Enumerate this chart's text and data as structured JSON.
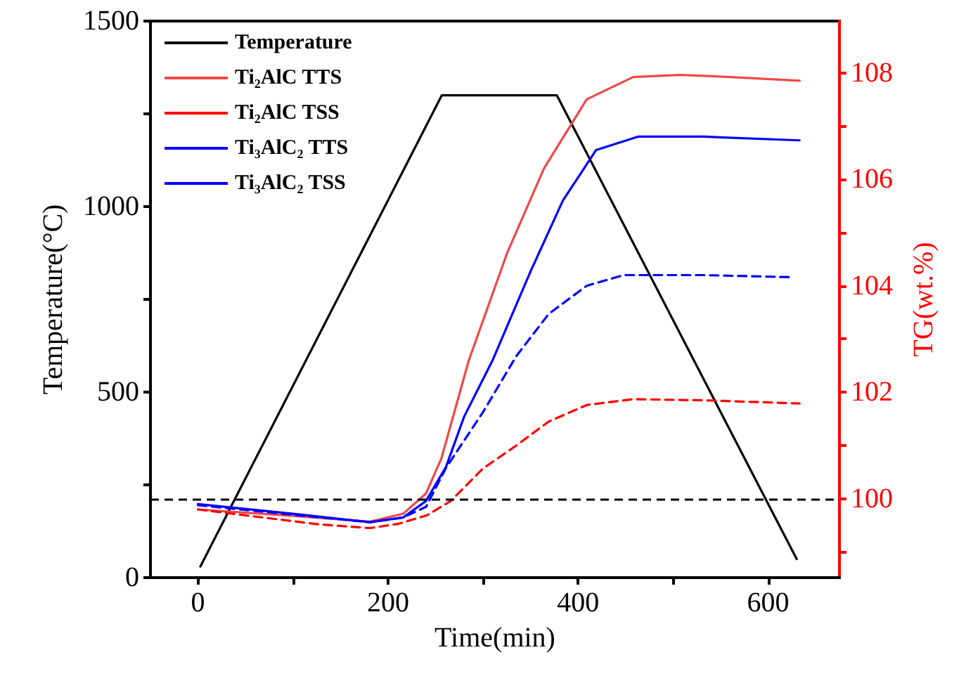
{
  "chart_data": {
    "type": "line",
    "xlabel": "Time(min)",
    "ylabel": "Temperature(°C)",
    "y2label": "TG(wt.%)",
    "xlim": [
      -50,
      675
    ],
    "xticks": [
      0,
      {
        "value": 100,
        "label": null
      },
      200,
      {
        "value": 300,
        "label": null
      },
      400,
      {
        "value": 500,
        "label": null
      },
      600
    ],
    "ylim": [
      0,
      1500
    ],
    "yticks": [
      0,
      {
        "value": 250,
        "label": null
      },
      500,
      {
        "value": 750,
        "label": null
      },
      1000,
      {
        "value": 1250,
        "label": null
      },
      1500
    ],
    "y2lim": [
      98.52,
      108.97
    ],
    "y2ticks": [
      {
        "value": 99,
        "label": null
      },
      100,
      {
        "value": 101,
        "label": null
      },
      102,
      {
        "value": 103,
        "label": null
      },
      104,
      {
        "value": 105,
        "label": null
      },
      106,
      {
        "value": 107,
        "label": null
      },
      108
    ],
    "grid": false,
    "legend": "top left",
    "marker": "none",
    "ref_lines": [
      {
        "axis": "y2",
        "value": 100,
        "label": null,
        "color": "#000000",
        "line_style": "dashed"
      }
    ],
    "series": [
      {
        "name": "Temperature",
        "color": "#000000",
        "line_style": "solid",
        "x": [
          2.5,
          256.6,
          377.6,
          630
        ],
        "values": [
          30,
          1300,
          1300,
          50
        ]
      },
      {
        "name": "Ti₂AlC TTS",
        "color": "#f04848",
        "line_style": "solid",
        "axis": "y2",
        "x": [
          0,
          100,
          181,
          216,
          240,
          251,
          256,
          285,
          325,
          364,
          409,
          458,
          507,
          560,
          633
        ],
        "values": [
          99.8,
          99.68,
          99.57,
          99.72,
          100.1,
          100.55,
          100.75,
          102.6,
          104.6,
          106.2,
          107.5,
          107.92,
          107.96,
          107.92,
          107.85
        ]
      },
      {
        "name": "Ti₂AlC TSS",
        "color": "#ff0000",
        "line_style": "dashed",
        "axis": "y2",
        "x": [
          0,
          127,
          181,
          211,
          241,
          266,
          300,
          335,
          369,
          409,
          458,
          532,
          633
        ],
        "values": [
          99.8,
          99.52,
          99.45,
          99.53,
          99.69,
          99.96,
          100.57,
          101.0,
          101.45,
          101.76,
          101.87,
          101.85,
          101.79
        ]
      },
      {
        "name": "Ti₃AlC₂ TTS",
        "color": "#0000ff",
        "line_style": "solid",
        "axis": "y2",
        "x": [
          0,
          100,
          181,
          216,
          240,
          261,
          280,
          310,
          350,
          384,
          419,
          463,
          532,
          633
        ],
        "values": [
          99.9,
          99.72,
          99.56,
          99.65,
          99.96,
          100.6,
          101.54,
          102.6,
          104.27,
          105.6,
          106.55,
          106.8,
          106.8,
          106.73
        ]
      },
      {
        "name": "Ti₃AlC₂ TSS",
        "color": "#0000ff",
        "line_style": "dashed",
        "axis": "y2",
        "x": [
          0,
          100,
          181,
          216,
          240,
          261,
          300,
          335,
          369,
          409,
          448,
          532,
          626
        ],
        "values": [
          99.88,
          99.7,
          99.56,
          99.65,
          99.85,
          100.58,
          101.63,
          102.68,
          103.47,
          104.0,
          104.2,
          104.2,
          104.16
        ]
      }
    ]
  }
}
